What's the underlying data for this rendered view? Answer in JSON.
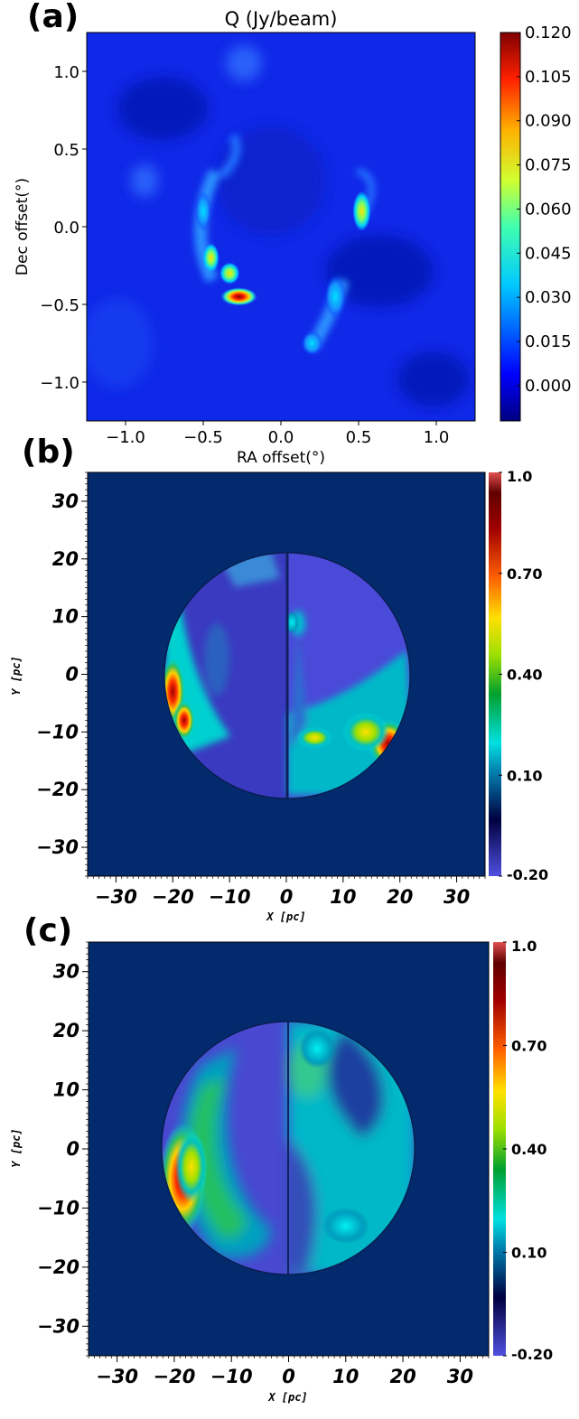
{
  "panels": [
    {
      "letter": "(a)",
      "title": "Q (Jy/beam)",
      "xlabel": "RA offset(°)",
      "ylabel": "Dec offset(°)",
      "xticks": [
        "−1.0",
        "−0.5",
        "0.0",
        "0.5",
        "1.0"
      ],
      "yticks": [
        "1.0",
        "0.5",
        "0.0",
        "−0.5",
        "−1.0"
      ],
      "colorbar_ticks": [
        "0.120",
        "0.105",
        "0.090",
        "0.075",
        "0.060",
        "0.045",
        "0.030",
        "0.015",
        "0.000"
      ]
    },
    {
      "letter": "(b)",
      "xlabel": "X [pc]",
      "ylabel": "Y [pc]",
      "xticks": [
        "−30",
        "−20",
        "−10",
        "0",
        "10",
        "20",
        "30"
      ],
      "yticks": [
        "30",
        "20",
        "10",
        "0",
        "−10",
        "−20",
        "−30"
      ],
      "colorbar_ticks": [
        "1.0",
        "0.70",
        "0.40",
        "0.10",
        "-0.20"
      ]
    },
    {
      "letter": "(c)",
      "xlabel": "X [pc]",
      "ylabel": "Y [pc]",
      "xticks": [
        "−30",
        "−20",
        "−10",
        "0",
        "10",
        "20",
        "30"
      ],
      "yticks": [
        "30",
        "20",
        "10",
        "0",
        "−10",
        "−20",
        "−30"
      ],
      "colorbar_ticks": [
        "1.0",
        "0.70",
        "0.40",
        "0.10",
        "-0.20"
      ]
    }
  ],
  "chart_data": [
    {
      "type": "heatmap",
      "title": "Q (Jy/beam)",
      "xlabel": "RA offset(°)",
      "ylabel": "Dec offset(°)",
      "xlim": [
        -1.25,
        1.25
      ],
      "ylim": [
        -1.25,
        1.25
      ],
      "x_ticks": [
        -1.0,
        -0.5,
        0.0,
        0.5,
        1.0
      ],
      "y_ticks": [
        -1.0,
        -0.5,
        0.0,
        0.5,
        1.0
      ],
      "colorbar": {
        "min": -0.012,
        "max": 0.12,
        "ticks": [
          0.0,
          0.015,
          0.03,
          0.045,
          0.06,
          0.075,
          0.09,
          0.105,
          0.12
        ],
        "colormap": "jet"
      },
      "features": [
        {
          "x": -0.27,
          "y": -0.45,
          "value": 0.12
        },
        {
          "x": -0.33,
          "y": -0.3,
          "value": 0.07
        },
        {
          "x": -0.45,
          "y": -0.2,
          "value": 0.08
        },
        {
          "x": -0.5,
          "y": 0.1,
          "value": 0.045
        },
        {
          "x": 0.52,
          "y": 0.1,
          "value": 0.05
        },
        {
          "x": 0.35,
          "y": -0.45,
          "value": 0.025
        },
        {
          "x": 0.2,
          "y": -0.75,
          "value": 0.02
        }
      ]
    },
    {
      "type": "heatmap",
      "xlabel": "X [pc]",
      "ylabel": "Y [pc]",
      "xlim": [
        -35,
        35
      ],
      "ylim": [
        -35,
        35
      ],
      "x_ticks": [
        -30,
        -20,
        -10,
        0,
        10,
        20,
        30
      ],
      "y_ticks": [
        -30,
        -20,
        -10,
        0,
        10,
        20,
        30
      ],
      "colorbar": {
        "min": -0.2,
        "max": 1.0,
        "ticks": [
          -0.2,
          0.1,
          0.4,
          0.7,
          1.0
        ],
        "colormap": "jet"
      },
      "disk": {
        "center": [
          0,
          0
        ],
        "radius": 21.5
      },
      "features": [
        {
          "x": -20,
          "y": -3,
          "value": 0.95
        },
        {
          "x": -18,
          "y": -8,
          "value": 0.8
        },
        {
          "x": 18,
          "y": -12,
          "value": 0.9
        },
        {
          "x": 14,
          "y": -10,
          "value": 0.45
        },
        {
          "x": 5,
          "y": -11,
          "value": 0.4
        },
        {
          "x": 1,
          "y": 9,
          "value": 0.15
        }
      ]
    },
    {
      "type": "heatmap",
      "xlabel": "X [pc]",
      "ylabel": "Y [pc]",
      "xlim": [
        -35,
        35
      ],
      "ylim": [
        -35,
        35
      ],
      "x_ticks": [
        -30,
        -20,
        -10,
        0,
        10,
        20,
        30
      ],
      "y_ticks": [
        -30,
        -20,
        -10,
        0,
        10,
        20,
        30
      ],
      "colorbar": {
        "min": -0.2,
        "max": 1.0,
        "ticks": [
          -0.2,
          0.1,
          0.4,
          0.7,
          1.0
        ],
        "colormap": "jet"
      },
      "disk": {
        "center": [
          0,
          0
        ],
        "radius": 21.5
      },
      "features": [
        {
          "x": -18.5,
          "y": -5,
          "value": 0.95
        },
        {
          "x": -17,
          "y": -3,
          "value": 0.6
        },
        {
          "x": 5,
          "y": 17,
          "value": 0.2
        },
        {
          "x": 10,
          "y": -13,
          "value": 0.1
        }
      ]
    }
  ]
}
